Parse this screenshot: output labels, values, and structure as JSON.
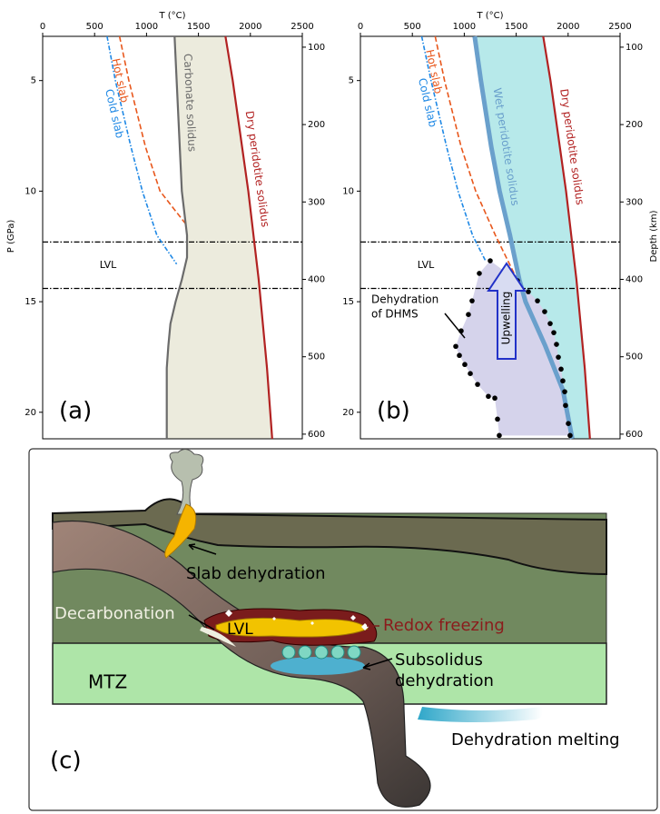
{
  "chart_data": [
    {
      "type": "line",
      "panel_label": "(a)",
      "x_label": "T (°C)",
      "y_label": "P (GPa)",
      "xlim": [
        0,
        2500
      ],
      "xticks": [
        0,
        500,
        1000,
        1500,
        2000,
        2500
      ],
      "ylim": [
        3,
        21.2
      ],
      "yticks": [
        5,
        10,
        15,
        20
      ],
      "y_reversed": true,
      "y2lim": [
        86,
        606
      ],
      "y2ticks": [
        100,
        200,
        300,
        400,
        500,
        600
      ],
      "lvl": {
        "label": "LVL",
        "P": [
          12.3,
          14.4
        ]
      },
      "series": [
        {
          "name": "Cold slab",
          "color": "#1e88e5",
          "dash": "dashdot",
          "T": [
            620,
            700,
            850,
            960,
            1100,
            1290
          ],
          "P": [
            3,
            5,
            8,
            10,
            12,
            13.3
          ]
        },
        {
          "name": "Hot slab",
          "color": "#e8571c",
          "dash": "dashed",
          "T": [
            740,
            830,
            990,
            1130,
            1380
          ],
          "P": [
            3,
            5,
            8,
            10,
            11.5
          ]
        },
        {
          "name": "Carbonate solidus",
          "color": "#6b6b6b",
          "dash": "solid",
          "fill": "#ecebdd",
          "T": [
            1270,
            1290,
            1320,
            1340,
            1390,
            1390,
            1340,
            1280,
            1230,
            1210,
            1195,
            1195
          ],
          "P": [
            3,
            5,
            8,
            10,
            12,
            13,
            14,
            15,
            16,
            17,
            18,
            21.2
          ]
        },
        {
          "name": "Dry peridotite solidus",
          "color": "#b22222",
          "dash": "solid",
          "T": [
            1760,
            1830,
            1920,
            1980,
            2030,
            2080,
            2120,
            2160,
            2210
          ],
          "P": [
            3,
            5,
            8,
            10,
            12,
            14,
            16,
            18,
            21.2
          ]
        }
      ]
    },
    {
      "type": "line",
      "panel_label": "(b)",
      "x_label": "T (°C)",
      "y2_label": "Depth (km)",
      "xlim": [
        0,
        2500
      ],
      "xticks": [
        0,
        500,
        1000,
        1500,
        2000,
        2500
      ],
      "ylim": [
        3,
        21.2
      ],
      "yticks": [
        5,
        10,
        15,
        20
      ],
      "y_reversed": true,
      "y2lim": [
        86,
        606
      ],
      "y2ticks": [
        100,
        200,
        300,
        400,
        500,
        600
      ],
      "lvl": {
        "label": "LVL",
        "P": [
          12.3,
          14.4
        ]
      },
      "arrow_label": "Upwelling",
      "region": {
        "label": [
          "Dehydration",
          "of DHMS"
        ],
        "color": "#d5d3eb",
        "T": [
          1250,
          1145,
          1075,
          1040,
          970,
          918,
          953,
          1005,
          1058,
          1128,
          1232,
          1294,
          1320,
          1337,
          2019,
          2002,
          1975,
          1967,
          1949,
          1932,
          1906,
          1888,
          1862,
          1827,
          1774,
          1705,
          1617,
          1512
        ],
        "P": [
          13.15,
          13.72,
          14.96,
          15.58,
          16.32,
          17.02,
          17.43,
          17.84,
          18.25,
          18.74,
          19.28,
          19.36,
          20.31,
          21.05,
          21.05,
          20.51,
          19.69,
          19.07,
          18.58,
          18.05,
          17.51,
          16.93,
          16.4,
          15.99,
          15.45,
          14.96,
          14.55,
          14.05
        ]
      },
      "series": [
        {
          "name": "Cold slab",
          "color": "#1e88e5",
          "dash": "dashdot",
          "T": [
            590,
            680,
            830,
            940,
            1080,
            1210
          ],
          "P": [
            3,
            5,
            8,
            10,
            12,
            13.2
          ]
        },
        {
          "name": "Hot slab",
          "color": "#e8571c",
          "dash": "dashed",
          "T": [
            720,
            810,
            970,
            1110,
            1300,
            1530
          ],
          "P": [
            3,
            5,
            8,
            10,
            12,
            14.2
          ]
        },
        {
          "name": "Wet peridotite solidus",
          "color": "#6aa0cc",
          "dash": "thick",
          "fill": "#b7e9ea",
          "T": [
            1100,
            1160,
            1260,
            1340,
            1440,
            1530,
            1590,
            1780,
            1950,
            2040
          ],
          "P": [
            3,
            5,
            8,
            10,
            12,
            14,
            15,
            17,
            19,
            21.2
          ]
        },
        {
          "name": "Dry peridotite solidus",
          "color": "#b22222",
          "dash": "solid",
          "T": [
            1760,
            1830,
            1920,
            1980,
            2030,
            2080,
            2120,
            2160,
            2210
          ],
          "P": [
            3,
            5,
            8,
            10,
            12,
            14,
            16,
            18,
            21.2
          ]
        }
      ]
    }
  ],
  "diagram": {
    "panel_label": "(c)",
    "labels": {
      "slab_dehydration": "Slab dehydration",
      "decarbonation": "Decarbonation",
      "lvl": "LVL",
      "redox_freezing": "Redox freezing",
      "subsolidus": [
        "Subsolidus",
        "dehydration"
      ],
      "mtz": "MTZ",
      "dehydration_melting": "Dehydration melting"
    }
  }
}
